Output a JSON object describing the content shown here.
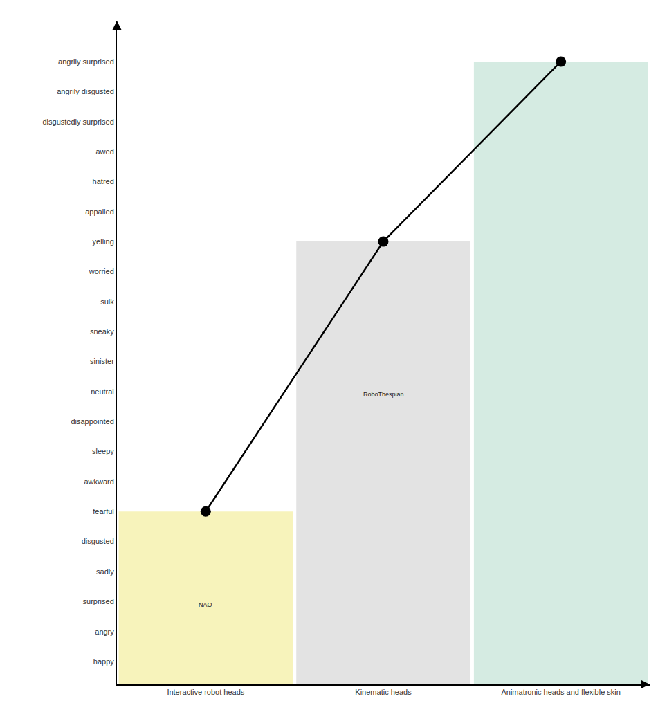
{
  "chart_data": {
    "type": "line",
    "categories": [
      "Interactive robot heads",
      "Kinematic heads",
      "Animatronic heads and flexible skin"
    ],
    "values": [
      5,
      14,
      20
    ],
    "color": "#000000",
    "marker": "circle",
    "line_style": "solid",
    "colors": [
      "#f7f3bb",
      "#e3e3e3",
      "#d5ebe2"
    ],
    "ylim": [
      -0.76,
      21.36
    ],
    "yticks": [
      {
        "value": 0,
        "label": "happy"
      },
      {
        "value": 1,
        "label": "angry"
      },
      {
        "value": 2,
        "label": "surprised"
      },
      {
        "value": 3,
        "label": "sadly"
      },
      {
        "value": 4,
        "label": "disgusted"
      },
      {
        "value": 5,
        "label": "fearful"
      },
      {
        "value": 6,
        "label": "awkward"
      },
      {
        "value": 7,
        "label": "sleepy"
      },
      {
        "value": 8,
        "label": "disappointed"
      },
      {
        "value": 9,
        "label": "neutral"
      },
      {
        "value": 10,
        "label": "sinister"
      },
      {
        "value": 11,
        "label": "sneaky"
      },
      {
        "value": 12,
        "label": "sulk"
      },
      {
        "value": 13,
        "label": "worried"
      },
      {
        "value": 14,
        "label": "yelling"
      },
      {
        "value": 15,
        "label": "appalled"
      },
      {
        "value": 16,
        "label": "hatred"
      },
      {
        "value": 17,
        "label": "awed"
      },
      {
        "value": 18,
        "label": "disgustedly surprised"
      },
      {
        "value": 19,
        "label": "angrily disgusted"
      },
      {
        "value": 20,
        "label": "angrily surprised"
      }
    ],
    "grid": false,
    "annotations": [
      {
        "text": "NAO",
        "category": "Interactive robot heads"
      },
      {
        "text": "RoboThespian",
        "category": "Kinematic heads"
      }
    ]
  }
}
